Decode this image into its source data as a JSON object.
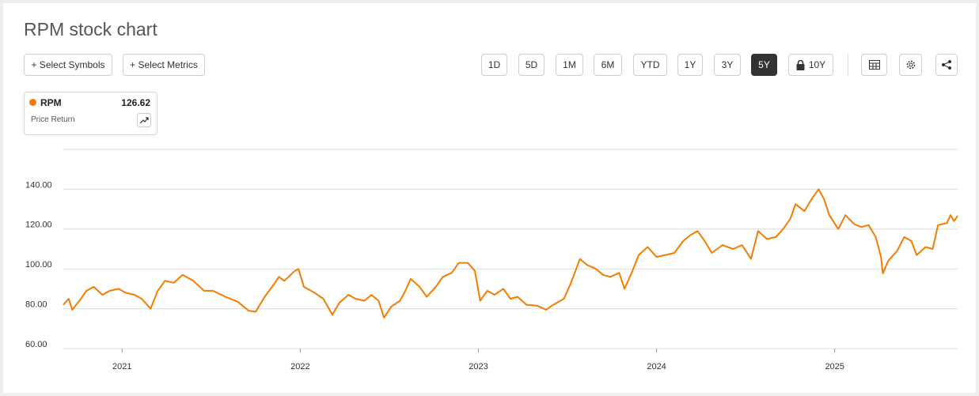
{
  "title": "RPM stock chart",
  "toolbar": {
    "select_buttons": [
      "+ Select Symbols",
      "+ Select Metrics"
    ],
    "periods": [
      "1D",
      "5D",
      "1M",
      "6M",
      "YTD",
      "1Y",
      "3Y",
      "5Y",
      "10Y"
    ],
    "selected_period_index": 7
  },
  "legend_card": {
    "metric": "Price Return",
    "value": 126.62
  },
  "chart_data": {
    "type": "line",
    "x": [
      2020.67,
      2020.7,
      2020.72,
      2020.76,
      2020.8,
      2020.84,
      2020.89,
      2020.93,
      2020.98,
      2021.02,
      2021.07,
      2021.11,
      2021.16,
      2021.2,
      2021.24,
      2021.29,
      2021.34,
      2021.4,
      2021.46,
      2021.51,
      2021.58,
      2021.65,
      2021.71,
      2021.75,
      2021.8,
      2021.85,
      2021.88,
      2021.91,
      2021.97,
      2021.99,
      2022.02,
      2022.08,
      2022.13,
      2022.18,
      2022.22,
      2022.27,
      2022.31,
      2022.36,
      2022.4,
      2022.44,
      2022.47,
      2022.51,
      2022.56,
      2022.59,
      2022.62,
      2022.67,
      2022.71,
      2022.76,
      2022.8,
      2022.85,
      2022.89,
      2022.94,
      2022.98,
      2023.01,
      2023.05,
      2023.09,
      2023.14,
      2023.18,
      2023.22,
      2023.27,
      2023.33,
      2023.38,
      2023.42,
      2023.48,
      2023.52,
      2023.57,
      2023.61,
      2023.66,
      2023.7,
      2023.74,
      2023.79,
      2023.82,
      2023.86,
      2023.9,
      2023.95,
      2024.0,
      2024.05,
      2024.1,
      2024.15,
      2024.19,
      2024.23,
      2024.27,
      2024.31,
      2024.37,
      2024.43,
      2024.48,
      2024.53,
      2024.57,
      2024.62,
      2024.67,
      2024.71,
      2024.75,
      2024.78,
      2024.83,
      2024.87,
      2024.91,
      2024.94,
      2024.97,
      2025.02,
      2025.06,
      2025.11,
      2025.15,
      2025.19,
      2025.23,
      2025.26,
      2025.27,
      2025.3,
      2025.35,
      2025.39,
      2025.43,
      2025.46,
      2025.51,
      2025.55,
      2025.58,
      2025.63,
      2025.65,
      2025.67,
      2025.69
    ],
    "series": [
      {
        "name": "RPM",
        "color": "#f57c00",
        "values": [
          82,
          85,
          79.5,
          84,
          89,
          91,
          87,
          89,
          90,
          88,
          87,
          85,
          80,
          89,
          94,
          93,
          97,
          94,
          89,
          89,
          86,
          83.5,
          79,
          78.5,
          86,
          92,
          96,
          94,
          99,
          100,
          91,
          88,
          85,
          77,
          83,
          87,
          85,
          84,
          87,
          84,
          75.5,
          81,
          84,
          89,
          95,
          91,
          86,
          91,
          96,
          98,
          103,
          103,
          99,
          84,
          89,
          87,
          90,
          85,
          86,
          82,
          81.5,
          79.5,
          82,
          85,
          93,
          105,
          102,
          100,
          97,
          96,
          98,
          90,
          98,
          107,
          111,
          106,
          107,
          108,
          114,
          117,
          119,
          114,
          108,
          112,
          110,
          112,
          105,
          119,
          115,
          116,
          120,
          125,
          132.5,
          129,
          135,
          140,
          135,
          127,
          120,
          127,
          122.5,
          121,
          122,
          116,
          106,
          97.7,
          104,
          109,
          116,
          114,
          107,
          111,
          110,
          122,
          123,
          127,
          124,
          126.62
        ]
      }
    ],
    "xlim": [
      2020.67,
      2025.69
    ],
    "xticks": [
      2021,
      2022,
      2023,
      2024,
      2025
    ],
    "ylim": [
      60,
      160
    ],
    "yticks": [
      {
        "value": 60,
        "label": "60.00"
      },
      {
        "value": 80,
        "label": "80.00"
      },
      {
        "value": 100,
        "label": "100.00"
      },
      {
        "value": 120,
        "label": "120.00"
      },
      {
        "value": 140,
        "label": "140.00"
      }
    ],
    "grid": true
  }
}
